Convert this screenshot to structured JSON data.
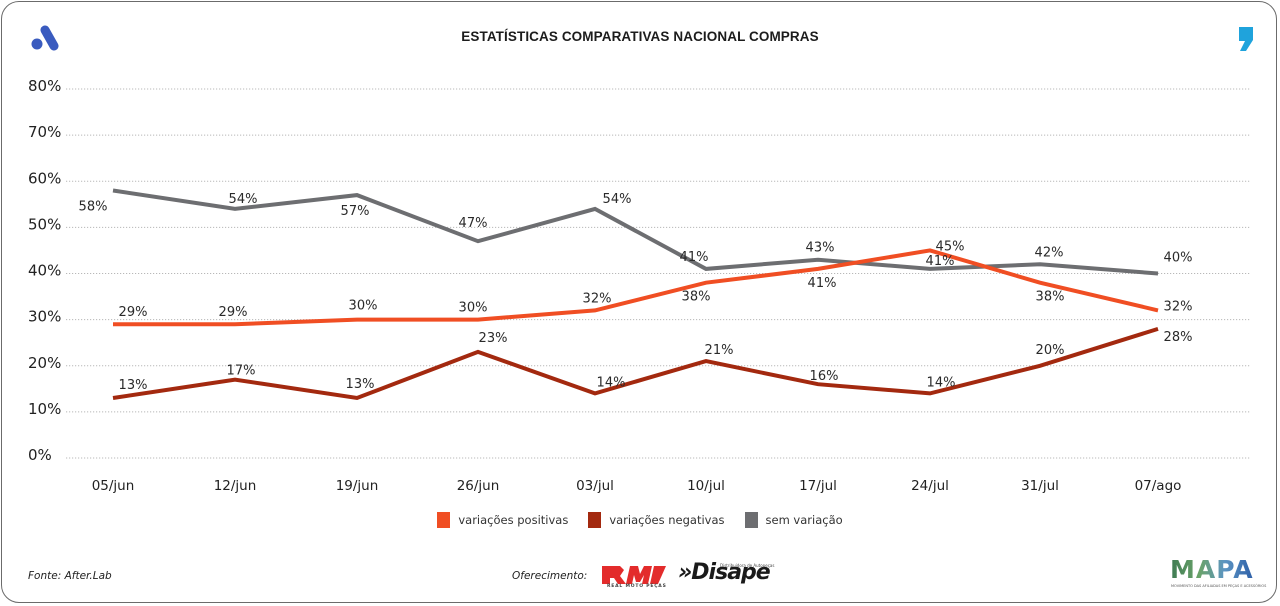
{
  "header": {
    "title": "ESTATÍSTICAS COMPARATIVAS NACIONAL COMPRAS",
    "left_logo_icon": "stylized-a-logo-icon",
    "right_logo_icon": "comma-logo-icon"
  },
  "colors": {
    "positivas": "#f04e23",
    "negativas": "#a3290f",
    "sem_variacao": "#6d6e71",
    "brand_blue": "#3a5bbf",
    "brand_cyan": "#1fa3dc",
    "gridline": "#b8b8b8"
  },
  "chart_data": {
    "type": "line",
    "title": "ESTATÍSTICAS COMPARATIVAS NACIONAL COMPRAS",
    "xlabel": "",
    "ylabel": "",
    "categories": [
      "05/jun",
      "12/jun",
      "19/jun",
      "26/jun",
      "03/jul",
      "10/jul",
      "17/jul",
      "24/jul",
      "31/jul",
      "07/ago"
    ],
    "ylim": [
      0,
      80
    ],
    "yticks": [
      "0%",
      "10%",
      "20%",
      "30%",
      "40%",
      "50%",
      "60%",
      "70%",
      "80%"
    ],
    "grid": true,
    "legend_position": "bottom",
    "series": [
      {
        "name": "variações positivas",
        "key": "positivas",
        "values": [
          29,
          29,
          30,
          30,
          32,
          38,
          41,
          45,
          38,
          32
        ],
        "labels": [
          "29%",
          "29%",
          "30%",
          "30%",
          "32%",
          "38%",
          "41%",
          "45%",
          "38%",
          "32%"
        ]
      },
      {
        "name": "variações negativas",
        "key": "negativas",
        "values": [
          13,
          17,
          13,
          23,
          14,
          21,
          16,
          14,
          20,
          28
        ],
        "labels": [
          "13%",
          "17%",
          "13%",
          "23%",
          "14%",
          "21%",
          "16%",
          "14%",
          "20%",
          "28%"
        ]
      },
      {
        "name": "sem variação",
        "key": "sem_variacao",
        "values": [
          58,
          54,
          57,
          47,
          54,
          41,
          43,
          41,
          42,
          40
        ],
        "labels": [
          "58%",
          "54%",
          "57%",
          "47%",
          "54%",
          "41%",
          "43%",
          "41%",
          "42%",
          "40%"
        ]
      }
    ]
  },
  "legend": {
    "items": [
      {
        "label": "variações positivas"
      },
      {
        "label": "variações negativas"
      },
      {
        "label": "sem variação"
      }
    ]
  },
  "footer": {
    "source": "Fonte: After.Lab",
    "sponsor_label": "Oferecimento:",
    "sponsors": [
      {
        "name": "RMP",
        "subtitle": "REAL MOTO PEÇAS"
      },
      {
        "name": "»Disape",
        "subtitle": "Distribuidora de Autopeças"
      }
    ],
    "partner": {
      "name": "MAPA",
      "subtitle": "MOVIMENTO DAS AFILIADAS EM PEÇAS E ACESSÓRIOS"
    }
  }
}
